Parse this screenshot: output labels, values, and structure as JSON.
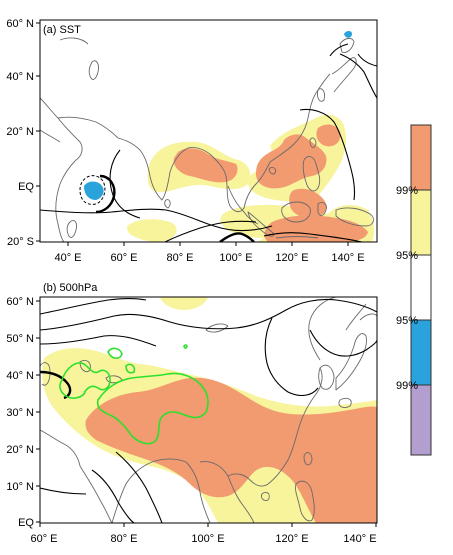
{
  "panels": [
    {
      "title": "(a) SST",
      "y_ticks": [
        "60° N",
        "40° N",
        "20° N",
        "EQ",
        "20° S"
      ],
      "x_ticks": [
        "40° E",
        "60° E",
        "80° E",
        "100° E",
        "120° E",
        "140° E"
      ]
    },
    {
      "title": "(b) 500hPa",
      "y_ticks": [
        "60° N",
        "50° N",
        "40° N",
        "30° N",
        "20° N",
        "10° N",
        "EQ"
      ],
      "x_ticks": [
        "60° E",
        "80° E",
        "100° E",
        "120° E",
        "140° E"
      ]
    }
  ],
  "colorbar": {
    "labels": [
      "99%",
      "95%",
      "95%",
      "99%"
    ],
    "colors": [
      "#f29a70",
      "#f7f49b",
      "#ffffff",
      "#2aa2dc",
      "#b39fcf"
    ]
  }
}
